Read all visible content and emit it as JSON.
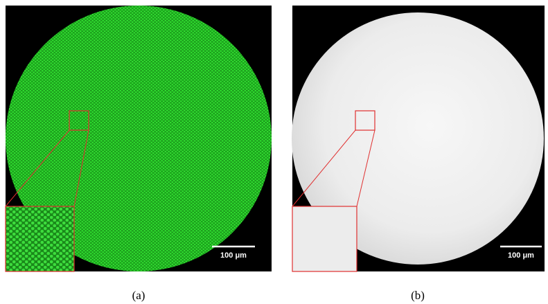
{
  "panels": [
    {
      "label": "(a)",
      "scale_bar": "100 μm"
    },
    {
      "label": "(b)",
      "scale_bar": "100 μm"
    }
  ]
}
